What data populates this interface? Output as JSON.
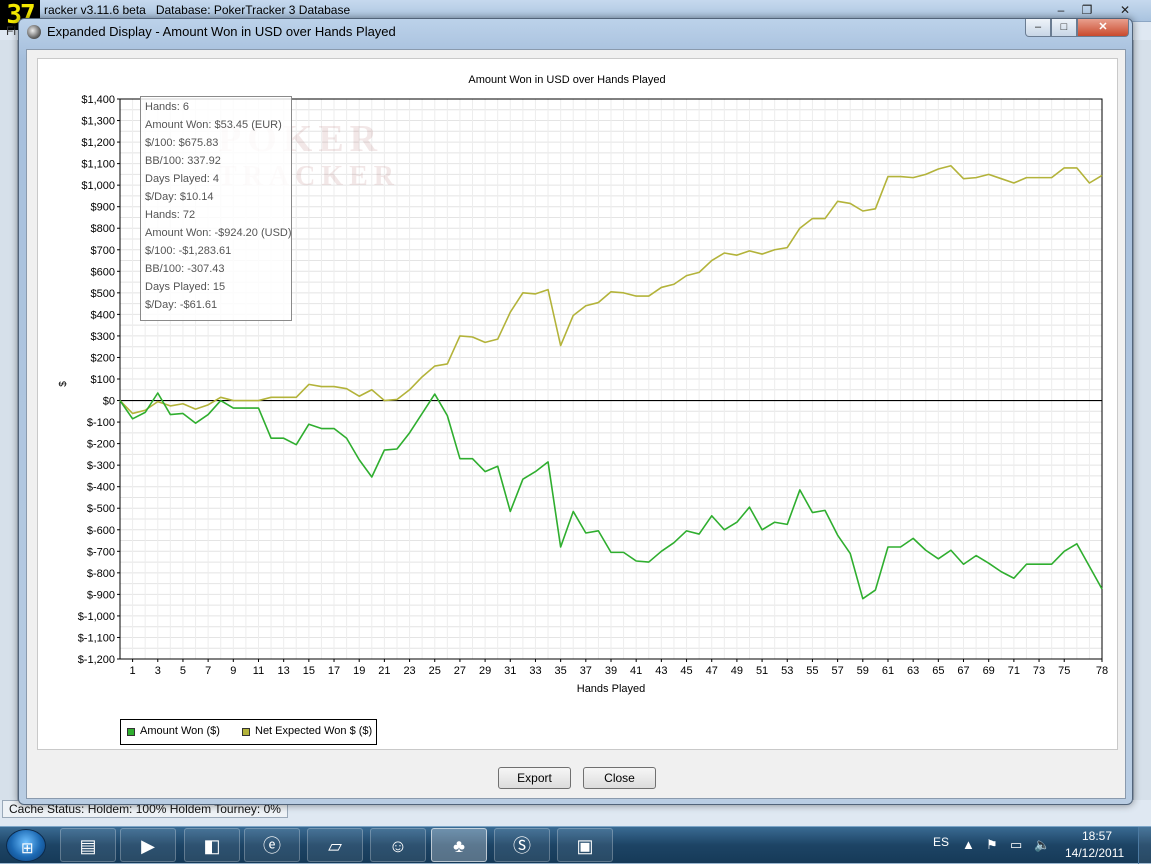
{
  "background_window": {
    "fps_badge": "37",
    "title": "racker v3.11.6 beta   Database: PokerTracker 3 Database",
    "menu_stub": "Fi",
    "cache_status": "Cache Status: Holdem: 100%   Holdem Tourney: 0%"
  },
  "dialog": {
    "title": "Expanded Display - Amount Won in USD over Hands Played",
    "export_label": "Export",
    "close_label": "Close",
    "close_glyph": "✕",
    "min_glyph": "–",
    "max_glyph": "□"
  },
  "tooltip": {
    "lines": [
      "Hands: 6",
      "Amount Won: $53.45 (EUR)",
      "$/100: $675.83",
      "BB/100: 337.92",
      "Days Played: 4",
      "$/Day: $10.14",
      "Hands: 72",
      "Amount Won: -$924.20 (USD)",
      "$/100: -$1,283.61",
      "BB/100: -307.43",
      "Days Played: 15",
      "$/Day: -$61.61"
    ]
  },
  "watermark": {
    "line1": "POKER",
    "line2": "TRACKER"
  },
  "chart_data": {
    "type": "line",
    "title": "Amount Won in USD over Hands Played",
    "xlabel": "Hands Played",
    "ylabel": "$",
    "xlim": [
      0,
      78
    ],
    "ylim": [
      -1200,
      1400
    ],
    "x_ticks": [
      1,
      3,
      5,
      7,
      9,
      11,
      13,
      15,
      17,
      19,
      21,
      23,
      25,
      27,
      29,
      31,
      33,
      35,
      37,
      39,
      41,
      43,
      45,
      47,
      49,
      51,
      53,
      55,
      57,
      59,
      61,
      63,
      65,
      67,
      69,
      71,
      73,
      75,
      78
    ],
    "y_ticks": [
      1400,
      1300,
      1200,
      1100,
      1000,
      900,
      800,
      700,
      600,
      500,
      400,
      300,
      200,
      100,
      0,
      -100,
      -200,
      -300,
      -400,
      -500,
      -600,
      -700,
      -800,
      -900,
      -1000,
      -1100,
      -1200
    ],
    "y_tick_labels": [
      "$1,400",
      "$1,300",
      "$1,200",
      "$1,100",
      "$1,000",
      "$900",
      "$800",
      "$700",
      "$600",
      "$500",
      "$400",
      "$300",
      "$200",
      "$100",
      "$0",
      "$-100",
      "$-200",
      "$-300",
      "$-400",
      "$-500",
      "$-600",
      "$-700",
      "$-800",
      "$-900",
      "$-1,000",
      "$-1,100",
      "$-1,200"
    ],
    "grid": true,
    "legend_position": "bottom-left",
    "series": [
      {
        "name": "Amount Won ($)",
        "color": "#2fae2f",
        "values": [
          0,
          -85,
          -55,
          35,
          -65,
          -60,
          -105,
          -65,
          0,
          -35,
          -35,
          -35,
          -175,
          -175,
          -205,
          -110,
          -130,
          -130,
          -175,
          -275,
          -355,
          -230,
          -225,
          -150,
          -60,
          30,
          -70,
          -270,
          -270,
          -330,
          -305,
          -515,
          -365,
          -330,
          -285,
          -680,
          -515,
          -615,
          -605,
          -705,
          -705,
          -745,
          -750,
          -700,
          -660,
          -605,
          -620,
          -535,
          -600,
          -565,
          -495,
          -600,
          -565,
          -575,
          -415,
          -520,
          -510,
          -625,
          -710,
          -920,
          -880,
          -680,
          -680,
          -640,
          -695,
          -735,
          -695,
          -760,
          -720,
          -755,
          -795,
          -825,
          -760,
          -760,
          -760,
          -700,
          -665,
          -770,
          -875
        ]
      },
      {
        "name": "Net Expected Won $ ($)",
        "color": "#b3b33a",
        "values": [
          0,
          -60,
          -45,
          -5,
          -25,
          -15,
          -40,
          -20,
          15,
          0,
          0,
          0,
          15,
          15,
          15,
          75,
          65,
          65,
          55,
          20,
          50,
          0,
          5,
          50,
          110,
          160,
          170,
          300,
          295,
          270,
          285,
          410,
          500,
          495,
          515,
          255,
          395,
          440,
          455,
          505,
          500,
          485,
          485,
          525,
          540,
          580,
          595,
          650,
          685,
          675,
          695,
          680,
          700,
          710,
          800,
          845,
          845,
          925,
          915,
          880,
          890,
          1040,
          1040,
          1035,
          1050,
          1075,
          1090,
          1030,
          1035,
          1050,
          1030,
          1010,
          1035,
          1035,
          1035,
          1080,
          1080,
          1010,
          1045
        ]
      }
    ]
  },
  "taskbar": {
    "language": "ES",
    "clock_time": "18:57",
    "clock_date": "14/12/2011",
    "apps": [
      "explorer",
      "media-player",
      "network-tool",
      "internet-explorer",
      "sticky-notes",
      "messenger",
      "pokertracker",
      "skype",
      "hud-monitor"
    ]
  }
}
